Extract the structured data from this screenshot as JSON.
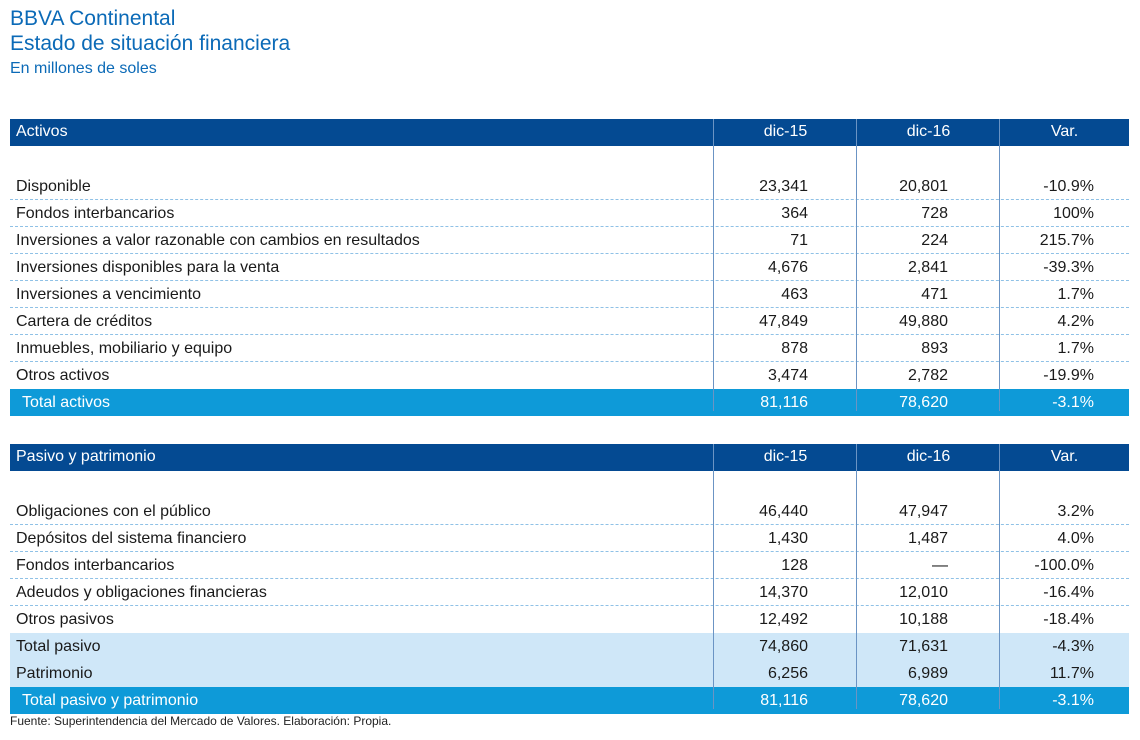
{
  "header": {
    "title": "BBVA Continental",
    "subtitle": "Estado de situación financiera",
    "unit": "En millones de soles"
  },
  "activos": {
    "columns": [
      "Activos",
      "dic-15",
      "dic-16",
      "Var."
    ],
    "rows": [
      [
        "Disponible",
        "23,341",
        "20,801",
        "-10.9%"
      ],
      [
        "Fondos interbancarios",
        "364",
        "728",
        "100%"
      ],
      [
        "Inversiones a valor razonable con cambios en resultados",
        "71",
        "224",
        "215.7%"
      ],
      [
        "Inversiones disponibles para la venta",
        "4,676",
        "2,841",
        "-39.3%"
      ],
      [
        "Inversiones a vencimiento",
        "463",
        "471",
        "1.7%"
      ],
      [
        "Cartera de créditos",
        "47,849",
        "49,880",
        "4.2%"
      ],
      [
        "Inmuebles, mobiliario y equipo",
        "878",
        "893",
        "1.7%"
      ],
      [
        "Otros activos",
        "3,474",
        "2,782",
        "-19.9%"
      ]
    ],
    "total": [
      "Total activos",
      "81,116",
      "78,620",
      "-3.1%"
    ]
  },
  "pasivo": {
    "columns": [
      "Pasivo y patrimonio",
      "dic-15",
      "dic-16",
      "Var."
    ],
    "rows": [
      [
        "Obligaciones con el público",
        "46,440",
        "47,947",
        "3.2%"
      ],
      [
        "Depósitos del sistema financiero",
        "1,430",
        "1,487",
        "4.0%"
      ],
      [
        "Fondos interbancarios",
        "128",
        "—",
        "-100.0%"
      ],
      [
        "Adeudos y obligaciones financieras",
        "14,370",
        "12,010",
        "-16.4%"
      ],
      [
        "Otros pasivos",
        "12,492",
        "10,188",
        "-18.4%"
      ]
    ],
    "subtotals": [
      [
        "Total pasivo",
        "74,860",
        "71,631",
        "-4.3%"
      ],
      [
        "Patrimonio",
        "6,256",
        "6,989",
        "11.7%"
      ]
    ],
    "total": [
      "Total pasivo y patrimonio",
      "81,116",
      "78,620",
      "-3.1%"
    ]
  },
  "footer": {
    "source": "Fuente: Superintendencia del Mercado de Valores. Elaboración: Propia."
  },
  "colors": {
    "header_bg": "#044a92",
    "total_bg": "#0e9ad8",
    "subtotal_bg": "#cfe7f8",
    "title_text": "#0b6ab7"
  }
}
